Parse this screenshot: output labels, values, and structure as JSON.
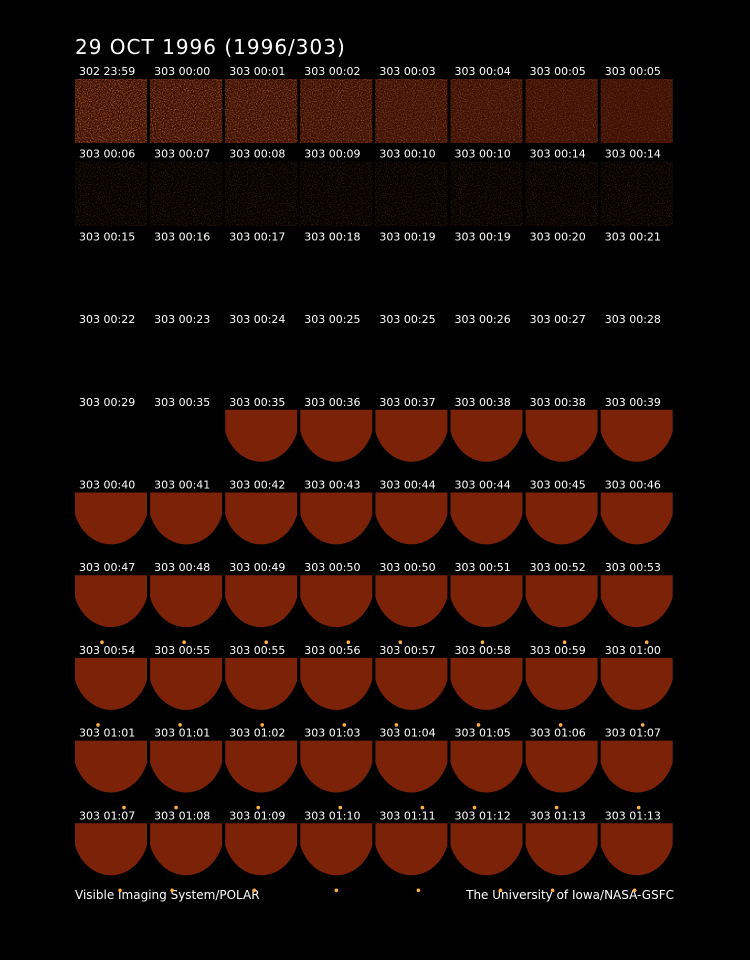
{
  "title": "29 OCT 1996  (1996/303)",
  "frames": [
    [
      "302 23:59",
      "303 00:00",
      "303 00:01",
      "303 00:02",
      "303 00:03",
      "303 00:04",
      "303 00:05",
      "303 00:05"
    ],
    [
      "303 00:06",
      "303 00:07",
      "303 00:08",
      "303 00:09",
      "303 00:10",
      "303 00:10",
      "303 00:14",
      "303 00:14"
    ],
    [
      "303 00:15",
      "303 00:16",
      "303 00:17",
      "303 00:18",
      "303 00:19",
      "303 00:19",
      "303 00:20",
      "303 00:21"
    ],
    [
      "303 00:22",
      "303 00:23",
      "303 00:24",
      "303 00:25",
      "303 00:25",
      "303 00:26",
      "303 00:27",
      "303 00:28"
    ],
    [
      "303 00:29",
      "303 00:35",
      "303 00:35",
      "303 00:36",
      "303 00:37",
      "303 00:38",
      "303 00:38",
      "303 00:39"
    ],
    [
      "303 00:40",
      "303 00:41",
      "303 00:42",
      "303 00:43",
      "303 00:44",
      "303 00:44",
      "303 00:45",
      "303 00:46"
    ],
    [
      "303 00:47",
      "303 00:48",
      "303 00:49",
      "303 00:50",
      "303 00:50",
      "303 00:51",
      "303 00:52",
      "303 00:53"
    ],
    [
      "303 00:54",
      "303 00:55",
      "303 00:55",
      "303 00:56",
      "303 00:57",
      "303 00:58",
      "303 00:59",
      "303 01:00"
    ],
    [
      "303 01:01",
      "303 01:01",
      "303 01:02",
      "303 01:03",
      "303 01:04",
      "303 01:05",
      "303 01:06",
      "303 01:07"
    ],
    [
      "303 01:07",
      "303 01:08",
      "303 01:09",
      "303 01:10",
      "303 01:11",
      "303 01:12",
      "303 01:13",
      "303 01:13"
    ]
  ],
  "footer": {
    "left": "Visible Imaging System/POLAR",
    "right": "The University of Iowa/NASA-GSFC"
  }
}
